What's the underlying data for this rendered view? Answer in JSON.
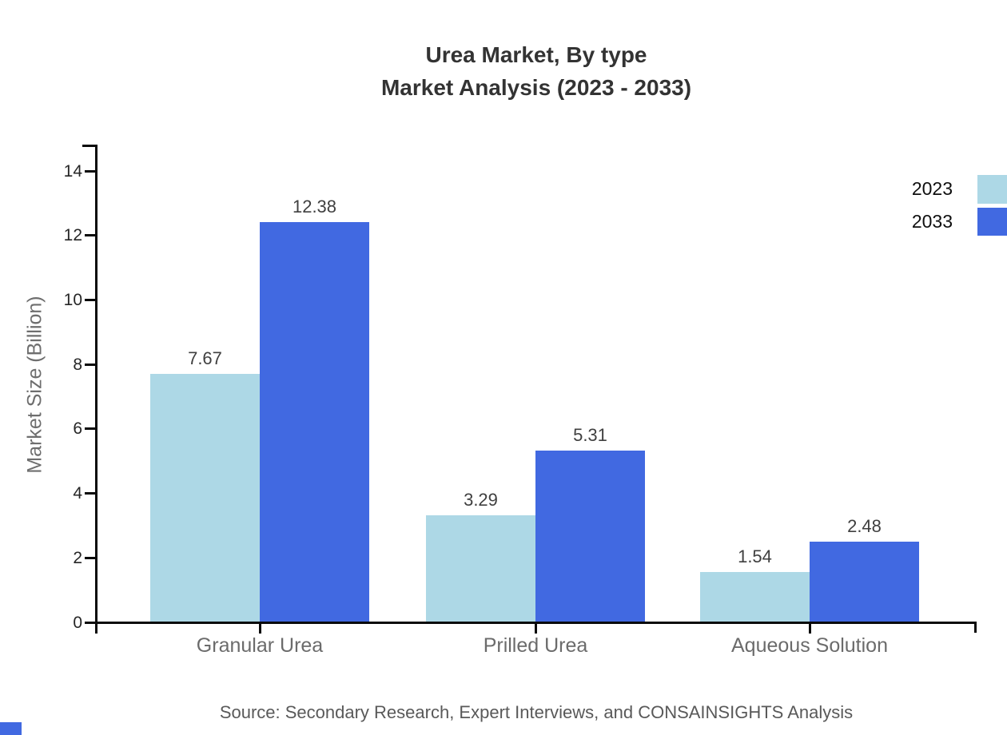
{
  "title": {
    "line1": "Urea Market, By type",
    "line2": "Market Analysis (2023 - 2033)"
  },
  "source_note": "Source: Secondary Research, Expert Interviews, and CONSAINSIGHTS Analysis",
  "legend": {
    "position": "top-right",
    "items": [
      {
        "label": "2023",
        "color": "#ADD8E6"
      },
      {
        "label": "2033",
        "color": "#4169E1"
      }
    ]
  },
  "chart_data": {
    "type": "bar",
    "title": "Urea Market, By type — Market Analysis (2023 - 2033)",
    "categories": [
      "Granular Urea",
      "Prilled Urea",
      "Aqueous Solution"
    ],
    "series": [
      {
        "name": "2023",
        "color": "#ADD8E6",
        "values": [
          7.67,
          3.29,
          1.54
        ]
      },
      {
        "name": "2033",
        "color": "#4169E1",
        "values": [
          12.38,
          5.31,
          2.48
        ]
      }
    ],
    "value_labels": [
      "7.67",
      "12.38",
      "3.29",
      "5.31",
      "1.54",
      "2.48"
    ],
    "xlabel": "",
    "ylabel": "Market Size (Billion)",
    "ylim": [
      0,
      15
    ],
    "yticks": [
      0,
      2,
      4,
      6,
      8,
      10,
      12,
      14
    ],
    "grid": false,
    "legend_position": "top-right"
  },
  "colors": {
    "axis": "#0a0a0a",
    "title_text": "#333333",
    "tick_text": "#262626",
    "category_text": "#6b6b6b",
    "ylabel_text": "#6e6e6e",
    "value_text": "#3f3f3f",
    "source_text": "#595959",
    "legend_text": "#0f0f0f",
    "corner_mark": "#4169E1"
  }
}
